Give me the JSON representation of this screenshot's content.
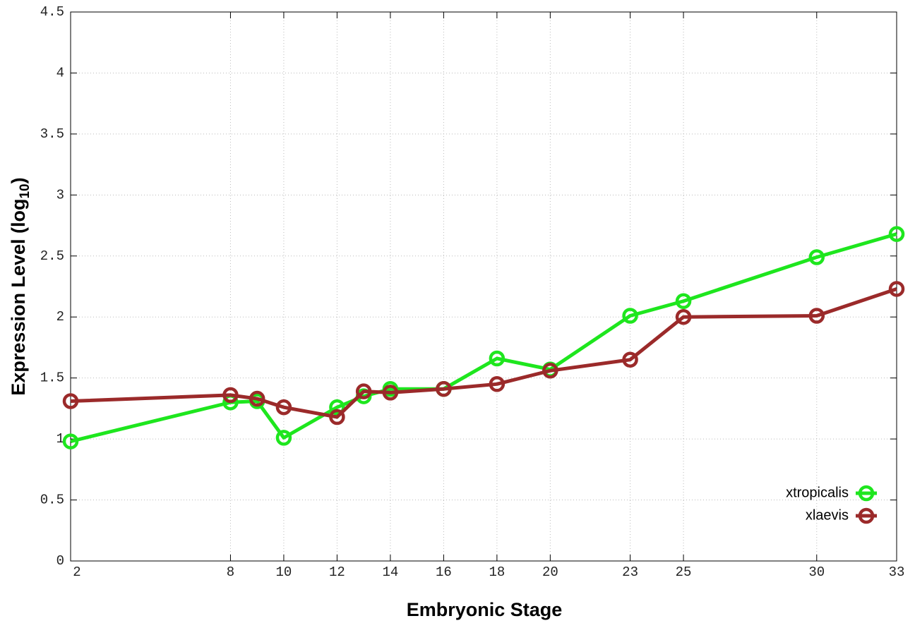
{
  "chart_data": {
    "type": "line",
    "x_label": "Embryonic Stage",
    "y_label": [
      "Expression Level (log",
      "10",
      ")"
    ],
    "x": [
      2,
      8,
      9,
      10,
      12,
      13,
      14,
      16,
      18,
      20,
      23,
      25,
      30,
      33
    ],
    "series": [
      {
        "name": "xtropicalis",
        "color": "#1ee61e",
        "values": [
          0.98,
          1.3,
          1.31,
          1.01,
          1.26,
          1.35,
          1.41,
          1.41,
          1.66,
          1.57,
          2.01,
          2.13,
          2.49,
          2.68
        ]
      },
      {
        "name": "xlaevis",
        "color": "#9b2a2a",
        "values": [
          1.31,
          1.36,
          1.33,
          1.26,
          1.18,
          1.39,
          1.38,
          1.41,
          1.45,
          1.56,
          1.65,
          2.0,
          2.01,
          2.23
        ]
      }
    ],
    "xlim": [
      2,
      33
    ],
    "xticks": [
      2,
      8,
      10,
      12,
      14,
      16,
      18,
      20,
      23,
      25,
      30,
      33
    ],
    "ylim": [
      0,
      4.5
    ],
    "yticks": [
      0,
      0.5,
      1,
      1.5,
      2,
      2.5,
      3,
      3.5,
      4,
      4.5
    ],
    "grid": true,
    "legend": "lower right"
  }
}
